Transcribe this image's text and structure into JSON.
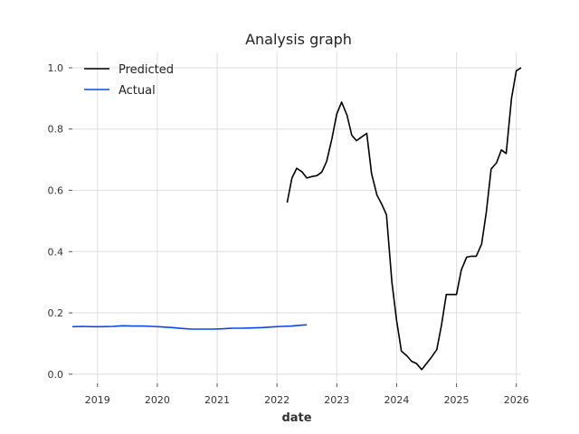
{
  "chart_data": {
    "type": "line",
    "title": "Analysis graph",
    "xlabel": "date",
    "ylabel": "",
    "xlim": [
      2018.58,
      2026.08
    ],
    "ylim": [
      -0.03,
      1.05
    ],
    "xticks": [
      2019,
      2020,
      2021,
      2022,
      2023,
      2024,
      2025,
      2026
    ],
    "xtick_labels": [
      "2019",
      "2020",
      "2021",
      "2022",
      "2023",
      "2024",
      "2025",
      "2026"
    ],
    "yticks": [
      0.0,
      0.2,
      0.4,
      0.6,
      0.8,
      1.0
    ],
    "ytick_labels": [
      "0.0",
      "0.2",
      "0.4",
      "0.6",
      "0.8",
      "1.0"
    ],
    "grid": true,
    "legend_position": "top-left",
    "series": [
      {
        "name": "Predicted",
        "color": "#000000",
        "x": [
          2022.17,
          2022.25,
          2022.33,
          2022.42,
          2022.5,
          2022.58,
          2022.67,
          2022.75,
          2022.83,
          2022.92,
          2023.0,
          2023.08,
          2023.17,
          2023.25,
          2023.33,
          2023.42,
          2023.5,
          2023.58,
          2023.67,
          2023.75,
          2023.83,
          2023.92,
          2024.0,
          2024.08,
          2024.17,
          2024.25,
          2024.33,
          2024.42,
          2024.5,
          2024.58,
          2024.67,
          2024.75,
          2024.83,
          2024.92,
          2025.0,
          2025.08,
          2025.17,
          2025.25,
          2025.33,
          2025.42,
          2025.5,
          2025.58,
          2025.67,
          2025.75,
          2025.83,
          2025.92,
          2026.0,
          2026.08
        ],
        "y": [
          0.56,
          0.64,
          0.672,
          0.66,
          0.64,
          0.645,
          0.648,
          0.66,
          0.695,
          0.77,
          0.85,
          0.888,
          0.845,
          0.78,
          0.762,
          0.775,
          0.786,
          0.655,
          0.585,
          0.555,
          0.52,
          0.3,
          0.175,
          0.075,
          0.06,
          0.042,
          0.035,
          0.015,
          0.035,
          0.055,
          0.08,
          0.16,
          0.26,
          0.26,
          0.26,
          0.34,
          0.382,
          0.385,
          0.385,
          0.425,
          0.53,
          0.67,
          0.69,
          0.732,
          0.72,
          0.9,
          0.99,
          1.0
        ]
      },
      {
        "name": "Actual",
        "color": "#0b46e6",
        "x": [
          2018.58,
          2018.75,
          2018.92,
          2019.08,
          2019.25,
          2019.42,
          2019.58,
          2019.75,
          2019.92,
          2020.08,
          2020.25,
          2020.42,
          2020.58,
          2020.75,
          2020.92,
          2021.08,
          2021.25,
          2021.42,
          2021.58,
          2021.75,
          2021.92,
          2022.08,
          2022.25,
          2022.42,
          2022.5
        ],
        "y": [
          0.155,
          0.156,
          0.155,
          0.155,
          0.156,
          0.158,
          0.157,
          0.157,
          0.156,
          0.154,
          0.152,
          0.149,
          0.147,
          0.147,
          0.147,
          0.148,
          0.15,
          0.15,
          0.151,
          0.152,
          0.154,
          0.156,
          0.157,
          0.16,
          0.161
        ]
      }
    ]
  }
}
